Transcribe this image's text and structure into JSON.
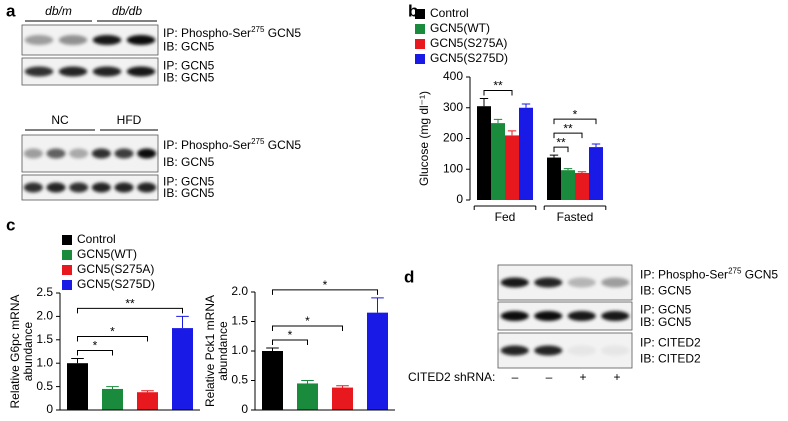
{
  "panels": {
    "a": {
      "label": "a",
      "groups_top": [
        "db/m",
        "db/db"
      ],
      "rows_top": [
        {
          "ip": [
            "IP: Phospho-Ser",
            "275",
            " GCN5"
          ],
          "ib": "IB: GCN5"
        },
        {
          "ip": "IP: GCN5",
          "ib": "IB: GCN5"
        }
      ],
      "groups_bottom": [
        "NC",
        "HFD"
      ],
      "rows_bottom": [
        {
          "ip": [
            "IP: Phospho-Ser",
            "275",
            " GCN5"
          ],
          "ib": "IB: GCN5"
        },
        {
          "ip": "IP: GCN5",
          "ib": "IB: GCN5"
        }
      ]
    },
    "d": {
      "label": "d",
      "rows": [
        {
          "ip": [
            "IP: Phospho-Ser",
            "275",
            " GCN5"
          ],
          "ib": "IB: GCN5"
        },
        {
          "ip": "IP: GCN5",
          "ib": "IB: GCN5"
        },
        {
          "ip": "IP: CITED2",
          "ib": "IB: CITED2"
        }
      ],
      "shrna_label": "CITED2 shRNA:",
      "shrna": [
        "–",
        "–",
        "+",
        "+"
      ]
    }
  },
  "chart_data": [
    {
      "panel": "b",
      "type": "bar",
      "y_label": "Glucose (mg dl⁻¹)",
      "categories": [
        "Fed",
        "Fasted"
      ],
      "ylim": [
        0,
        400
      ],
      "yticks": [
        0,
        100,
        200,
        300,
        400
      ],
      "series": [
        {
          "name": "Control",
          "color": "#000000",
          "values": [
            305,
            138
          ],
          "errors": [
            25,
            8
          ]
        },
        {
          "name": "GCN5(WT)",
          "color": "#1a8a3c",
          "values": [
            250,
            97
          ],
          "errors": [
            12,
            5
          ]
        },
        {
          "name": "GCN5(S275A)",
          "color": "#e8191e",
          "values": [
            210,
            88
          ],
          "errors": [
            15,
            4
          ]
        },
        {
          "name": "GCN5(S275D)",
          "color": "#1a1ae6",
          "values": [
            300,
            172
          ],
          "errors": [
            12,
            10
          ]
        }
      ],
      "annotations": [
        [
          "**"
        ],
        [
          "**",
          "**",
          "*"
        ]
      ]
    },
    {
      "panel": "c",
      "type": "bar",
      "y_label": [
        "Relative G6pc mRNA",
        "abundance"
      ],
      "ylim": [
        0,
        2.5
      ],
      "yticks": [
        0,
        0.5,
        {
          "value": 1,
          "label": "1.0"
        },
        1.5,
        {
          "value": 2,
          "label": "2.0"
        },
        2.5
      ],
      "series": [
        {
          "name": "Control",
          "color": "#000000",
          "values": [
            1.0
          ],
          "errors": [
            0.1
          ]
        },
        {
          "name": "GCN5(WT)",
          "color": "#1a8a3c",
          "values": [
            0.45
          ],
          "errors": [
            0.05
          ]
        },
        {
          "name": "GCN5(S275A)",
          "color": "#e8191e",
          "values": [
            0.38
          ],
          "errors": [
            0.03
          ]
        },
        {
          "name": "GCN5(S275D)",
          "color": "#1a1ae6",
          "values": [
            1.75
          ],
          "errors": [
            0.25
          ]
        }
      ],
      "annotations": [
        "*",
        "*",
        "**"
      ]
    },
    {
      "type": "bar",
      "y_label": [
        "Relative Pck1 mRNA",
        "abundance"
      ],
      "ylim": [
        0,
        2
      ],
      "yticks": [
        0,
        0.5,
        {
          "value": 1,
          "label": "1.0"
        },
        1.5,
        {
          "value": 2,
          "label": "2.0"
        }
      ],
      "series": [
        {
          "color": "#000000",
          "values": [
            1.0
          ],
          "errors": [
            0.05
          ]
        },
        {
          "color": "#1a8a3c",
          "values": [
            0.45
          ],
          "errors": [
            0.05
          ]
        },
        {
          "color": "#e8191e",
          "values": [
            0.38
          ],
          "errors": [
            0.03
          ]
        },
        {
          "color": "#1a1ae6",
          "values": [
            1.65
          ],
          "errors": [
            0.25
          ]
        }
      ],
      "annotations": [
        "*",
        "*",
        "*"
      ]
    }
  ]
}
